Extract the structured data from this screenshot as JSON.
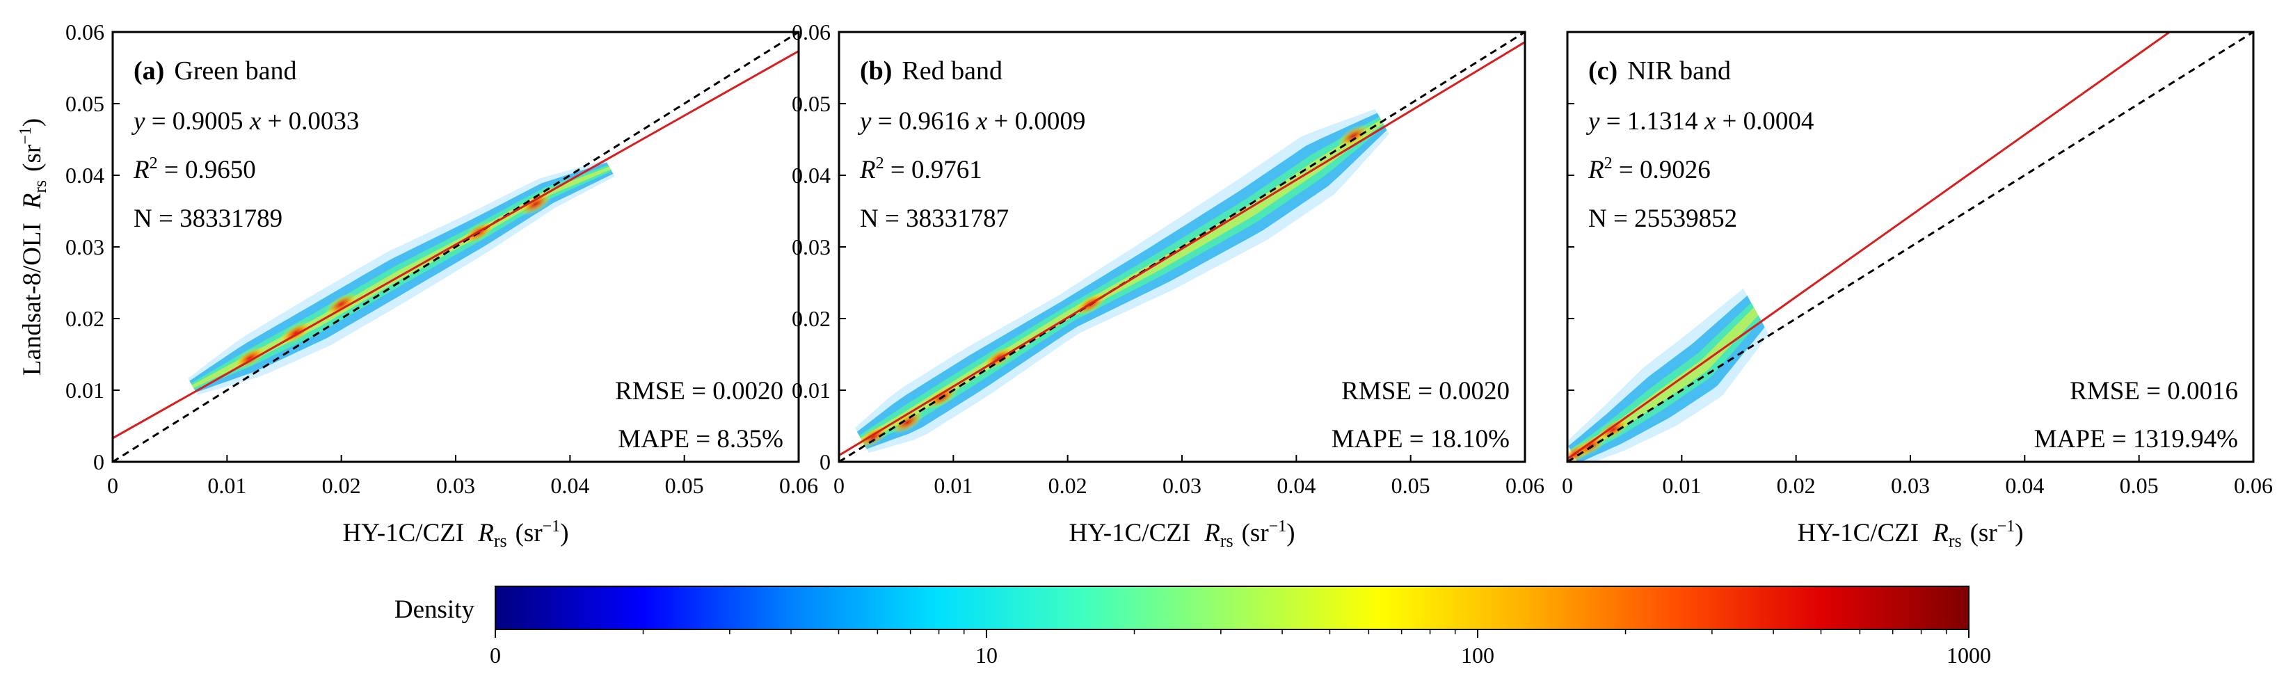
{
  "figure": {
    "shared_xlabel": "HY-1C/CZI",
    "shared_ylabel": "Landsat-8/OLI",
    "rrs_symbol": "R",
    "rrs_sub": "rs",
    "unit_open": "(sr",
    "unit_exp": "−1",
    "unit_close": ")"
  },
  "colorbar": {
    "label": "Density",
    "ticks": [
      "0",
      "10",
      "100",
      "1000"
    ],
    "stops": [
      "#00007f",
      "#0000ff",
      "#0080ff",
      "#00e0ff",
      "#40ffbf",
      "#a0ff60",
      "#ffff00",
      "#ffb000",
      "#ff5000",
      "#e00000",
      "#7f0000"
    ]
  },
  "colors": {
    "fit_line": "#d61f1f",
    "one_to_one": "#000000"
  },
  "chart_data": [
    {
      "type": "scatter",
      "tag": "(a)",
      "title": "Green band",
      "eq_lhs": "y",
      "eq_eq": " = 0.9005 ",
      "eq_x": "x",
      "eq_rest": " + 0.0033",
      "r2_label": "R",
      "r2_sup": "2",
      "r2_value": " = 0.9650",
      "n_text": "N  = 38331789",
      "rmse_text": "RMSE = 0.0020",
      "mape_text": "MAPE = 8.35%",
      "slope": 0.9005,
      "intercept": 0.0033,
      "xlim": [
        0,
        0.06
      ],
      "ylim": [
        0,
        0.06
      ],
      "xticks": [
        "0",
        "0.01",
        "0.02",
        "0.03",
        "0.04",
        "0.05",
        "0.06"
      ],
      "yticks": [
        "0",
        "0.01",
        "0.02",
        "0.03",
        "0.04",
        "0.05",
        "0.06"
      ],
      "cloud": {
        "x_range": [
          0.007,
          0.044
        ],
        "spine": [
          [
            0.007,
            0.0105
          ],
          [
            0.012,
            0.0145
          ],
          [
            0.018,
            0.0195
          ],
          [
            0.025,
            0.026
          ],
          [
            0.032,
            0.032
          ],
          [
            0.038,
            0.0375
          ],
          [
            0.0435,
            0.041
          ]
        ],
        "half_width": [
          0.0008,
          0.0018,
          0.0022,
          0.0022,
          0.0018,
          0.0014,
          0.0008
        ],
        "hot": [
          [
            0.012,
            0.0145
          ],
          [
            0.016,
            0.018
          ],
          [
            0.02,
            0.022
          ],
          [
            0.032,
            0.032
          ],
          [
            0.037,
            0.036
          ]
        ]
      }
    },
    {
      "type": "scatter",
      "tag": "(b)",
      "title": "Red band",
      "eq_lhs": "y",
      "eq_eq": " = 0.9616 ",
      "eq_x": "x",
      "eq_rest": " + 0.0009",
      "r2_label": "R",
      "r2_sup": "2",
      "r2_value": " = 0.9761",
      "n_text": "N  = 38331787",
      "rmse_text": "RMSE = 0.0020",
      "mape_text": "MAPE = 18.10%",
      "slope": 0.9616,
      "intercept": 0.0009,
      "xlim": [
        0,
        0.06
      ],
      "ylim": [
        0,
        0.06
      ],
      "xticks": [
        "0",
        "0.01",
        "0.02",
        "0.03",
        "0.04",
        "0.05",
        "0.06"
      ],
      "yticks": [
        "0",
        "0.01",
        "0.02",
        "0.03",
        "0.04",
        "0.05",
        "0.06"
      ],
      "cloud": {
        "x_range": [
          0.002,
          0.048
        ],
        "spine": [
          [
            0.002,
            0.003
          ],
          [
            0.006,
            0.0065
          ],
          [
            0.012,
            0.0125
          ],
          [
            0.02,
            0.0205
          ],
          [
            0.028,
            0.0275
          ],
          [
            0.036,
            0.035
          ],
          [
            0.042,
            0.0415
          ],
          [
            0.0475,
            0.0475
          ]
        ],
        "half_width": [
          0.0012,
          0.0022,
          0.0022,
          0.0018,
          0.0024,
          0.0028,
          0.0028,
          0.0012
        ],
        "hot": [
          [
            0.003,
            0.0035
          ],
          [
            0.006,
            0.0055
          ],
          [
            0.009,
            0.009
          ],
          [
            0.014,
            0.0145
          ],
          [
            0.022,
            0.022
          ],
          [
            0.045,
            0.0455
          ]
        ]
      }
    },
    {
      "type": "scatter",
      "tag": "(c)",
      "title": "NIR band",
      "eq_lhs": "y",
      "eq_eq": " = 1.1314 ",
      "eq_x": "x",
      "eq_rest": " + 0.0004",
      "r2_label": "R",
      "r2_sup": "2",
      "r2_value": " = 0.9026",
      "n_text": "N  = 25539852",
      "rmse_text": "RMSE = 0.0016",
      "mape_text": "MAPE = 1319.94%",
      "slope": 1.1314,
      "intercept": 0.0004,
      "xlim": [
        0,
        0.06
      ],
      "ylim": [
        0,
        0.06
      ],
      "xticks": [
        "0",
        "0.01",
        "0.02",
        "0.03",
        "0.04",
        "0.05",
        "0.06"
      ],
      "yticks": [],
      "cloud": {
        "x_range": [
          0.0,
          0.018
        ],
        "spine": [
          [
            0.0005,
            0.001
          ],
          [
            0.004,
            0.0045
          ],
          [
            0.008,
            0.009
          ],
          [
            0.012,
            0.0135
          ],
          [
            0.0165,
            0.021
          ]
        ],
        "half_width": [
          0.0012,
          0.002,
          0.0028,
          0.003,
          0.0022
        ],
        "hot": [
          [
            0.0008,
            0.0012
          ],
          [
            0.002,
            0.0022
          ],
          [
            0.004,
            0.0045
          ]
        ]
      }
    }
  ]
}
